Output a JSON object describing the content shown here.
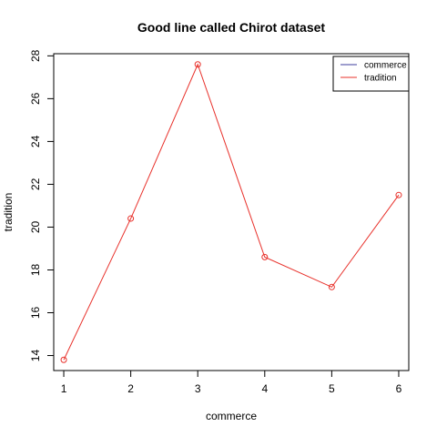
{
  "chart_data": {
    "type": "line",
    "title": "Good line called Chirot dataset",
    "xlabel": "commerce",
    "ylabel": "tradition",
    "x": [
      1,
      2,
      3,
      4,
      5,
      6
    ],
    "series": [
      {
        "name": "tradition",
        "values": [
          13.8,
          20.4,
          27.6,
          18.6,
          17.2,
          21.5
        ],
        "color": "#e8302a"
      }
    ],
    "legend": {
      "position": "top-right",
      "entries": [
        {
          "label": "commerce",
          "color": "#3d3d9e"
        },
        {
          "label": "tradition",
          "color": "#e8302a"
        }
      ]
    },
    "xticks": [
      1,
      2,
      3,
      4,
      5,
      6
    ],
    "yticks": [
      14,
      16,
      18,
      20,
      22,
      24,
      26,
      28
    ],
    "xlim": [
      0.85,
      6.15
    ],
    "ylim": [
      13.3,
      28.1
    ],
    "grid": false,
    "marker": "open-circle"
  }
}
